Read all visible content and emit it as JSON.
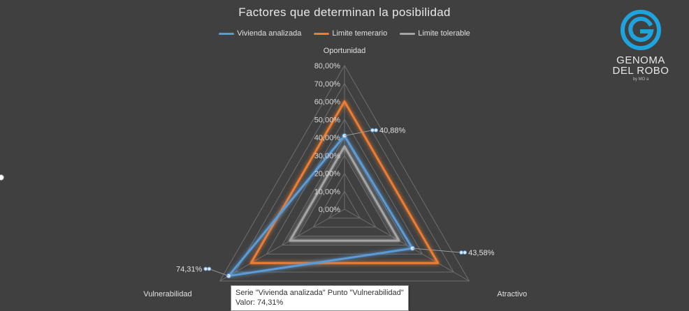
{
  "chart_data": {
    "type": "radar",
    "title": "Factores  que determinan la posibilidad",
    "categories": [
      "Oportunidad",
      "Atractivo",
      "Vulnerabilidad"
    ],
    "axis_ticks": [
      "0,00%",
      "10,00%",
      "20,00%",
      "30,00%",
      "40,00%",
      "50,00%",
      "60,00%",
      "70,00%",
      "80,00%"
    ],
    "ylim": [
      0,
      0.8
    ],
    "grid": true,
    "legend_position": "top",
    "series": [
      {
        "name": "Vivienda analizada",
        "values": [
          0.4088,
          0.4358,
          0.7431
        ],
        "color": "#5b9bd5"
      },
      {
        "name": "Limite temerario",
        "values": [
          0.6,
          0.6,
          0.6
        ],
        "color": "#ed7d31"
      },
      {
        "name": "Limite tolerable",
        "values": [
          0.35,
          0.35,
          0.35
        ],
        "color": "#a5a5a5"
      }
    ],
    "data_labels": [
      {
        "series": "Vivienda analizada",
        "category": "Oportunidad",
        "text": "40,88%"
      },
      {
        "series": "Vivienda analizada",
        "category": "Atractivo",
        "text": "43,58%"
      },
      {
        "series": "Vivienda analizada",
        "category": "Vulnerabilidad",
        "text": "74,31%"
      }
    ]
  },
  "logo": {
    "line1": "GENOMA",
    "line2": "DEL ROBO",
    "sub": "by MO a"
  },
  "tooltip": {
    "line1": "Serie \"Vivienda analizada\" Punto \"Vulnerabilidad\"",
    "line2": "Valor: 74,31%"
  },
  "colors": {
    "background": "#404040",
    "grid": "#6e6e6e",
    "text": "#e0e0e0",
    "logo_blue": "#1fa3dc"
  }
}
